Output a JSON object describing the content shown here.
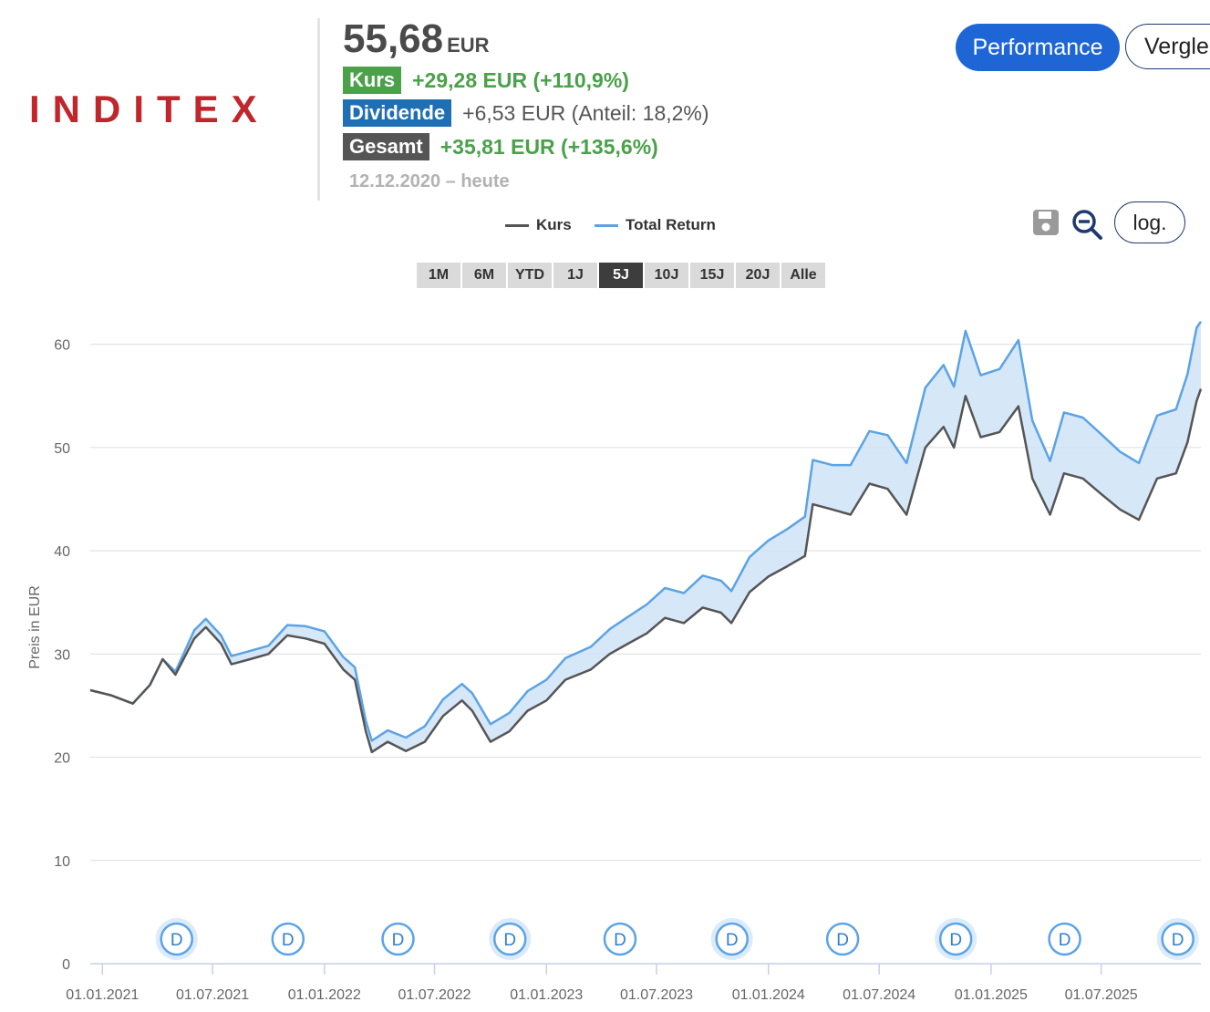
{
  "header": {
    "logo_text": "INDITEX",
    "price": "55,68",
    "price_unit": "EUR",
    "rows": [
      {
        "tag": "Kurs",
        "tag_color": "#4aa14a",
        "value": "+29,28 EUR (+110,9%)",
        "value_style": "pos"
      },
      {
        "tag": "Dividende",
        "tag_color": "#1f6fb5",
        "value": "+6,53 EUR (Anteil: 18,2%)",
        "value_style": "neu"
      },
      {
        "tag": "Gesamt",
        "tag_color": "#555555",
        "value": "+35,81 EUR (+135,6%)",
        "value_style": "pos"
      }
    ],
    "period": "12.12.2020 – heute"
  },
  "buttons": {
    "performance": "Performance",
    "compare": "Vergleich",
    "log": "log."
  },
  "icons": {
    "save": "save-icon",
    "zoom_out": "zoom-out-icon"
  },
  "legend": {
    "kurs": "Kurs",
    "total_return": "Total Return",
    "kurs_color": "#555555",
    "total_return_color": "#5ba3e6"
  },
  "ranges": [
    "1M",
    "6M",
    "YTD",
    "1J",
    "5J",
    "10J",
    "15J",
    "20J",
    "Alle"
  ],
  "active_range": "5J",
  "chart_data": {
    "type": "line",
    "ylabel": "Preis in EUR",
    "ylim": [
      0,
      62
    ],
    "yticks": [
      0,
      10,
      20,
      30,
      40,
      50,
      60
    ],
    "xticks": [
      "01.01.2021",
      "01.07.2021",
      "01.01.2022",
      "01.07.2022",
      "01.01.2023",
      "01.07.2023",
      "01.01.2024",
      "01.07.2024",
      "01.01.2025",
      "01.07.2025"
    ],
    "x_start": "2020-12-12",
    "x_end": "2025-12-12",
    "grid": true,
    "series": [
      {
        "name": "Kurs",
        "color": "#555555",
        "points": [
          [
            "2020-12-12",
            26.5
          ],
          [
            "2021-01-15",
            26.0
          ],
          [
            "2021-02-20",
            25.2
          ],
          [
            "2021-03-20",
            27.0
          ],
          [
            "2021-04-10",
            29.5
          ],
          [
            "2021-05-01",
            28.0
          ],
          [
            "2021-06-01",
            31.5
          ],
          [
            "2021-06-20",
            32.6
          ],
          [
            "2021-07-15",
            31.0
          ],
          [
            "2021-08-01",
            29.0
          ],
          [
            "2021-09-01",
            29.5
          ],
          [
            "2021-10-01",
            30.0
          ],
          [
            "2021-11-01",
            31.8
          ],
          [
            "2021-12-01",
            31.5
          ],
          [
            "2022-01-01",
            31.0
          ],
          [
            "2022-02-01",
            28.5
          ],
          [
            "2022-02-20",
            27.5
          ],
          [
            "2022-03-10",
            22.5
          ],
          [
            "2022-03-20",
            20.5
          ],
          [
            "2022-04-15",
            21.5
          ],
          [
            "2022-05-15",
            20.6
          ],
          [
            "2022-06-15",
            21.5
          ],
          [
            "2022-07-15",
            24.0
          ],
          [
            "2022-08-15",
            25.5
          ],
          [
            "2022-09-01",
            24.5
          ],
          [
            "2022-10-01",
            21.5
          ],
          [
            "2022-11-01",
            22.5
          ],
          [
            "2022-12-01",
            24.5
          ],
          [
            "2023-01-01",
            25.5
          ],
          [
            "2023-02-01",
            27.5
          ],
          [
            "2023-03-15",
            28.5
          ],
          [
            "2023-04-15",
            30.0
          ],
          [
            "2023-05-15",
            31.0
          ],
          [
            "2023-06-15",
            32.0
          ],
          [
            "2023-07-15",
            33.5
          ],
          [
            "2023-08-15",
            33.0
          ],
          [
            "2023-09-15",
            34.5
          ],
          [
            "2023-10-15",
            34.0
          ],
          [
            "2023-11-01",
            33.0
          ],
          [
            "2023-12-01",
            36.0
          ],
          [
            "2024-01-01",
            37.5
          ],
          [
            "2024-02-01",
            38.5
          ],
          [
            "2024-03-01",
            39.5
          ],
          [
            "2024-03-14",
            44.5
          ],
          [
            "2024-04-15",
            44.0
          ],
          [
            "2024-05-15",
            43.5
          ],
          [
            "2024-06-15",
            46.5
          ],
          [
            "2024-07-15",
            46.0
          ],
          [
            "2024-08-15",
            43.5
          ],
          [
            "2024-09-15",
            50.0
          ],
          [
            "2024-10-15",
            52.0
          ],
          [
            "2024-11-01",
            50.0
          ],
          [
            "2024-11-20",
            55.0
          ],
          [
            "2024-12-15",
            51.0
          ],
          [
            "2025-01-15",
            51.5
          ],
          [
            "2025-02-15",
            54.0
          ],
          [
            "2025-03-10",
            47.0
          ],
          [
            "2025-04-08",
            43.5
          ],
          [
            "2025-05-01",
            47.5
          ],
          [
            "2025-06-01",
            47.0
          ],
          [
            "2025-07-01",
            45.5
          ],
          [
            "2025-08-01",
            44.0
          ],
          [
            "2025-09-01",
            43.0
          ],
          [
            "2025-10-01",
            47.0
          ],
          [
            "2025-11-01",
            47.5
          ],
          [
            "2025-11-20",
            50.5
          ],
          [
            "2025-12-05",
            54.5
          ],
          [
            "2025-12-12",
            55.68
          ]
        ]
      },
      {
        "name": "Total Return",
        "color": "#5ba3e6",
        "points": [
          [
            "2020-12-12",
            26.5
          ],
          [
            "2021-01-15",
            26.0
          ],
          [
            "2021-02-20",
            25.2
          ],
          [
            "2021-03-20",
            27.0
          ],
          [
            "2021-04-10",
            29.5
          ],
          [
            "2021-05-01",
            28.3
          ],
          [
            "2021-06-01",
            32.3
          ],
          [
            "2021-06-20",
            33.4
          ],
          [
            "2021-07-15",
            31.8
          ],
          [
            "2021-08-01",
            29.8
          ],
          [
            "2021-09-01",
            30.3
          ],
          [
            "2021-10-01",
            30.8
          ],
          [
            "2021-11-01",
            32.8
          ],
          [
            "2021-12-01",
            32.7
          ],
          [
            "2022-01-01",
            32.2
          ],
          [
            "2022-02-01",
            29.7
          ],
          [
            "2022-02-20",
            28.7
          ],
          [
            "2022-03-10",
            23.5
          ],
          [
            "2022-03-20",
            21.6
          ],
          [
            "2022-04-15",
            22.6
          ],
          [
            "2022-05-15",
            21.9
          ],
          [
            "2022-06-15",
            23.0
          ],
          [
            "2022-07-15",
            25.6
          ],
          [
            "2022-08-15",
            27.1
          ],
          [
            "2022-09-01",
            26.2
          ],
          [
            "2022-10-01",
            23.2
          ],
          [
            "2022-11-01",
            24.3
          ],
          [
            "2022-12-01",
            26.4
          ],
          [
            "2023-01-01",
            27.5
          ],
          [
            "2023-02-01",
            29.6
          ],
          [
            "2023-03-15",
            30.7
          ],
          [
            "2023-04-15",
            32.4
          ],
          [
            "2023-05-15",
            33.6
          ],
          [
            "2023-06-15",
            34.8
          ],
          [
            "2023-07-15",
            36.4
          ],
          [
            "2023-08-15",
            35.9
          ],
          [
            "2023-09-15",
            37.6
          ],
          [
            "2023-10-15",
            37.1
          ],
          [
            "2023-11-01",
            36.1
          ],
          [
            "2023-12-01",
            39.4
          ],
          [
            "2024-01-01",
            41.0
          ],
          [
            "2024-02-01",
            42.1
          ],
          [
            "2024-03-01",
            43.3
          ],
          [
            "2024-03-14",
            48.8
          ],
          [
            "2024-04-15",
            48.3
          ],
          [
            "2024-05-15",
            48.3
          ],
          [
            "2024-06-15",
            51.6
          ],
          [
            "2024-07-15",
            51.2
          ],
          [
            "2024-08-15",
            48.5
          ],
          [
            "2024-09-15",
            55.8
          ],
          [
            "2024-10-15",
            58.0
          ],
          [
            "2024-11-01",
            55.9
          ],
          [
            "2024-11-20",
            61.3
          ],
          [
            "2024-12-15",
            57.0
          ],
          [
            "2025-01-15",
            57.6
          ],
          [
            "2025-02-15",
            60.4
          ],
          [
            "2025-03-10",
            52.6
          ],
          [
            "2025-04-08",
            48.7
          ],
          [
            "2025-05-01",
            53.4
          ],
          [
            "2025-06-01",
            52.9
          ],
          [
            "2025-07-01",
            51.3
          ],
          [
            "2025-08-01",
            49.6
          ],
          [
            "2025-09-01",
            48.5
          ],
          [
            "2025-10-01",
            53.1
          ],
          [
            "2025-11-01",
            53.7
          ],
          [
            "2025-11-20",
            57.1
          ],
          [
            "2025-12-05",
            61.6
          ],
          [
            "2025-12-12",
            62.2
          ]
        ]
      }
    ],
    "dividend_markers": [
      {
        "label": "D",
        "date": "2021-05-03",
        "highlight": true
      },
      {
        "label": "D",
        "date": "2021-11-02",
        "highlight": false
      },
      {
        "label": "D",
        "date": "2022-05-02",
        "highlight": false
      },
      {
        "label": "D",
        "date": "2022-11-02",
        "highlight": true
      },
      {
        "label": "D",
        "date": "2023-05-02",
        "highlight": false
      },
      {
        "label": "D",
        "date": "2023-11-02",
        "highlight": true
      },
      {
        "label": "D",
        "date": "2024-05-02",
        "highlight": false
      },
      {
        "label": "D",
        "date": "2024-11-04",
        "highlight": true
      },
      {
        "label": "D",
        "date": "2025-05-02",
        "highlight": false
      },
      {
        "label": "D",
        "date": "2025-11-04",
        "highlight": true
      }
    ]
  }
}
